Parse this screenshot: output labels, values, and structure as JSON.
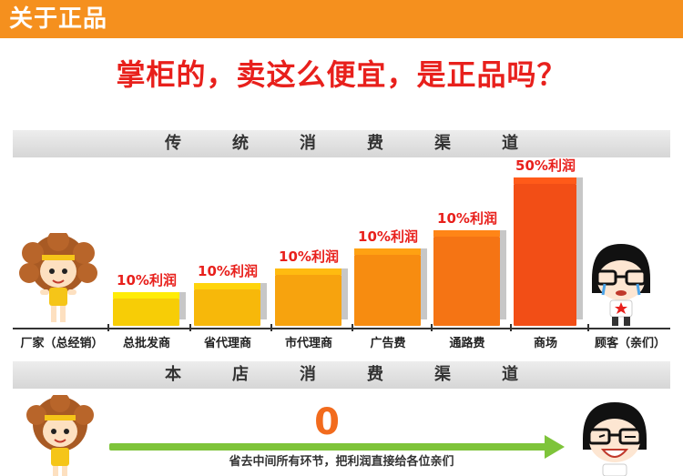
{
  "header": {
    "title": "关于正品"
  },
  "headline": "掌柜的，卖这么便宜，是正品吗？",
  "traditional": {
    "band_title": "传统消费渠道",
    "manufacturer_label": "厂家（总经销）",
    "customer_label": "顾客（亲们）",
    "bars": [
      {
        "channel": "总批发商",
        "margin_label": "10%利润",
        "color": "#f7cd06"
      },
      {
        "channel": "省代理商",
        "margin_label": "10%利润",
        "color": "#f7b80a"
      },
      {
        "channel": "市代理商",
        "margin_label": "10%利润",
        "color": "#f7a30e"
      },
      {
        "channel": "广告费",
        "margin_label": "10%利润",
        "color": "#f78c10"
      },
      {
        "channel": "通路费",
        "margin_label": "10%利润",
        "color": "#f57414"
      },
      {
        "channel": "商场",
        "margin_label": "50%利润",
        "color": "#f24e16"
      }
    ]
  },
  "store": {
    "band_title": "本店消费渠道",
    "markup_value": "0",
    "note": "省去中间所有环节，把利润直接给各位亲们",
    "arrow_color": "#7ec43a"
  },
  "chart_data": {
    "type": "bar",
    "categories": [
      "总批发商",
      "省代理商",
      "市代理商",
      "广告费",
      "通路费",
      "商场"
    ],
    "data_labels": [
      "10%利润",
      "10%利润",
      "10%利润",
      "10%利润",
      "10%利润",
      "50%利润"
    ],
    "title": "传统消费渠道"
  }
}
